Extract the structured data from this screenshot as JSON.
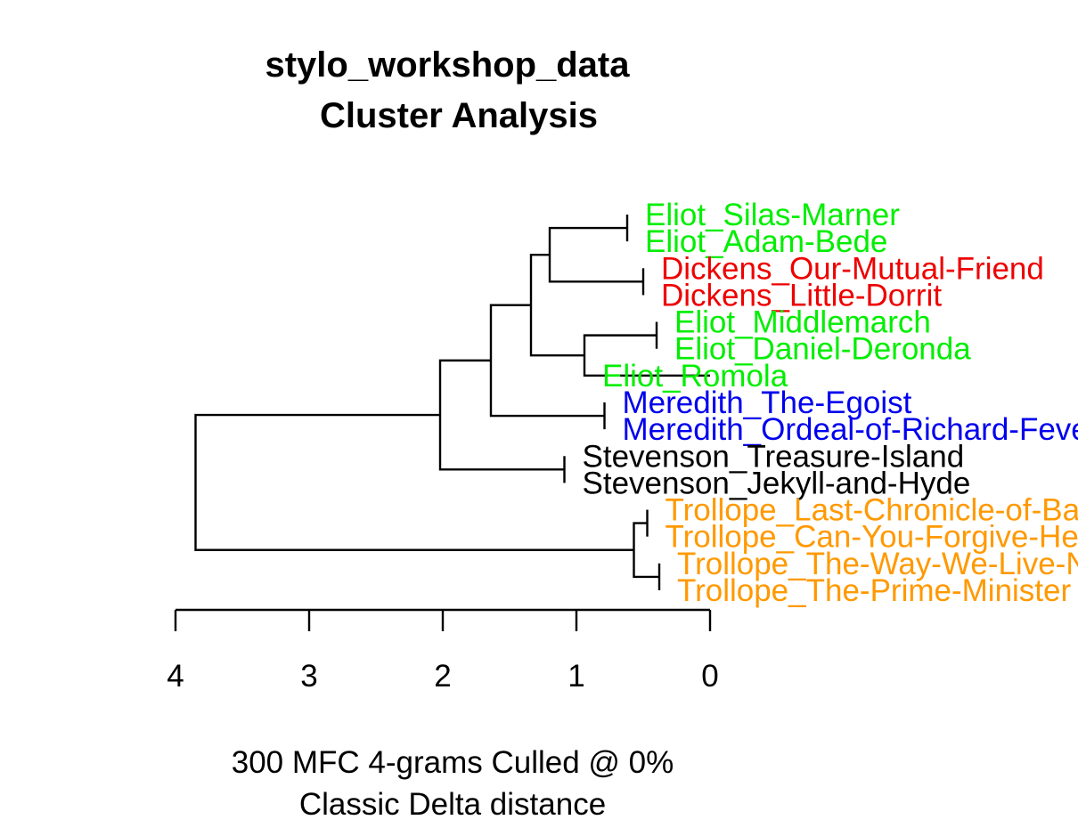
{
  "chart_data": {
    "type": "dendrogram",
    "title": [
      "stylo_workshop_data",
      "Cluster Analysis"
    ],
    "subtitle": [
      "300 MFC 4-grams Culled @ 0%",
      "Classic Delta distance"
    ],
    "x_axis": {
      "ticks": [
        4,
        3,
        2,
        1,
        0
      ],
      "range": [
        4,
        0
      ]
    },
    "colors": {
      "Eliot": "#00ee00",
      "Dickens": "#ee0000",
      "Meredith": "#0000ee",
      "Stevenson": "#000000",
      "Trollope": "#ff9900"
    },
    "leaves": [
      {
        "label": "Eliot_Silas-Marner",
        "author": "Eliot"
      },
      {
        "label": "Eliot_Adam-Bede",
        "author": "Eliot"
      },
      {
        "label": "Dickens_Our-Mutual-Friend",
        "author": "Dickens"
      },
      {
        "label": "Dickens_Little-Dorrit",
        "author": "Dickens"
      },
      {
        "label": "Eliot_Middlemarch",
        "author": "Eliot"
      },
      {
        "label": "Eliot_Daniel-Deronda",
        "author": "Eliot"
      },
      {
        "label": "Eliot_Romola",
        "author": "Eliot"
      },
      {
        "label": "Meredith_The-Egoist",
        "author": "Meredith"
      },
      {
        "label": "Meredith_Ordeal-of-Richard-Feverel",
        "author": "Meredith"
      },
      {
        "label": "Stevenson_Treasure-Island",
        "author": "Stevenson"
      },
      {
        "label": "Stevenson_Jekyll-and-Hyde",
        "author": "Stevenson"
      },
      {
        "label": "Trollope_Last-Chronicle-of-Barset",
        "author": "Trollope"
      },
      {
        "label": "Trollope_Can-You-Forgive-Her",
        "author": "Trollope"
      },
      {
        "label": "Trollope_The-Way-We-Live-Now",
        "author": "Trollope"
      },
      {
        "label": "Trollope_The-Prime-Minister",
        "author": "Trollope"
      }
    ],
    "merges": [
      {
        "a": "L0",
        "b": "L1",
        "height": 0.62
      },
      {
        "a": "L2",
        "b": "L3",
        "height": 0.5
      },
      {
        "a": "N0",
        "b": "N1",
        "height": 1.2
      },
      {
        "a": "L4",
        "b": "L5",
        "height": 0.4
      },
      {
        "a": "N3",
        "b": "L6",
        "height": 0.94
      },
      {
        "a": "N2",
        "b": "N4",
        "height": 1.34
      },
      {
        "a": "L7",
        "b": "L8",
        "height": 0.79
      },
      {
        "a": "N5",
        "b": "N6",
        "height": 1.64
      },
      {
        "a": "L9",
        "b": "L10",
        "height": 1.09
      },
      {
        "a": "N7",
        "b": "N8",
        "height": 2.02
      },
      {
        "a": "L11",
        "b": "L12",
        "height": 0.47
      },
      {
        "a": "L13",
        "b": "L14",
        "height": 0.38
      },
      {
        "a": "N10",
        "b": "N11",
        "height": 0.57
      },
      {
        "a": "N9",
        "b": "N12",
        "height": 3.85
      }
    ]
  }
}
